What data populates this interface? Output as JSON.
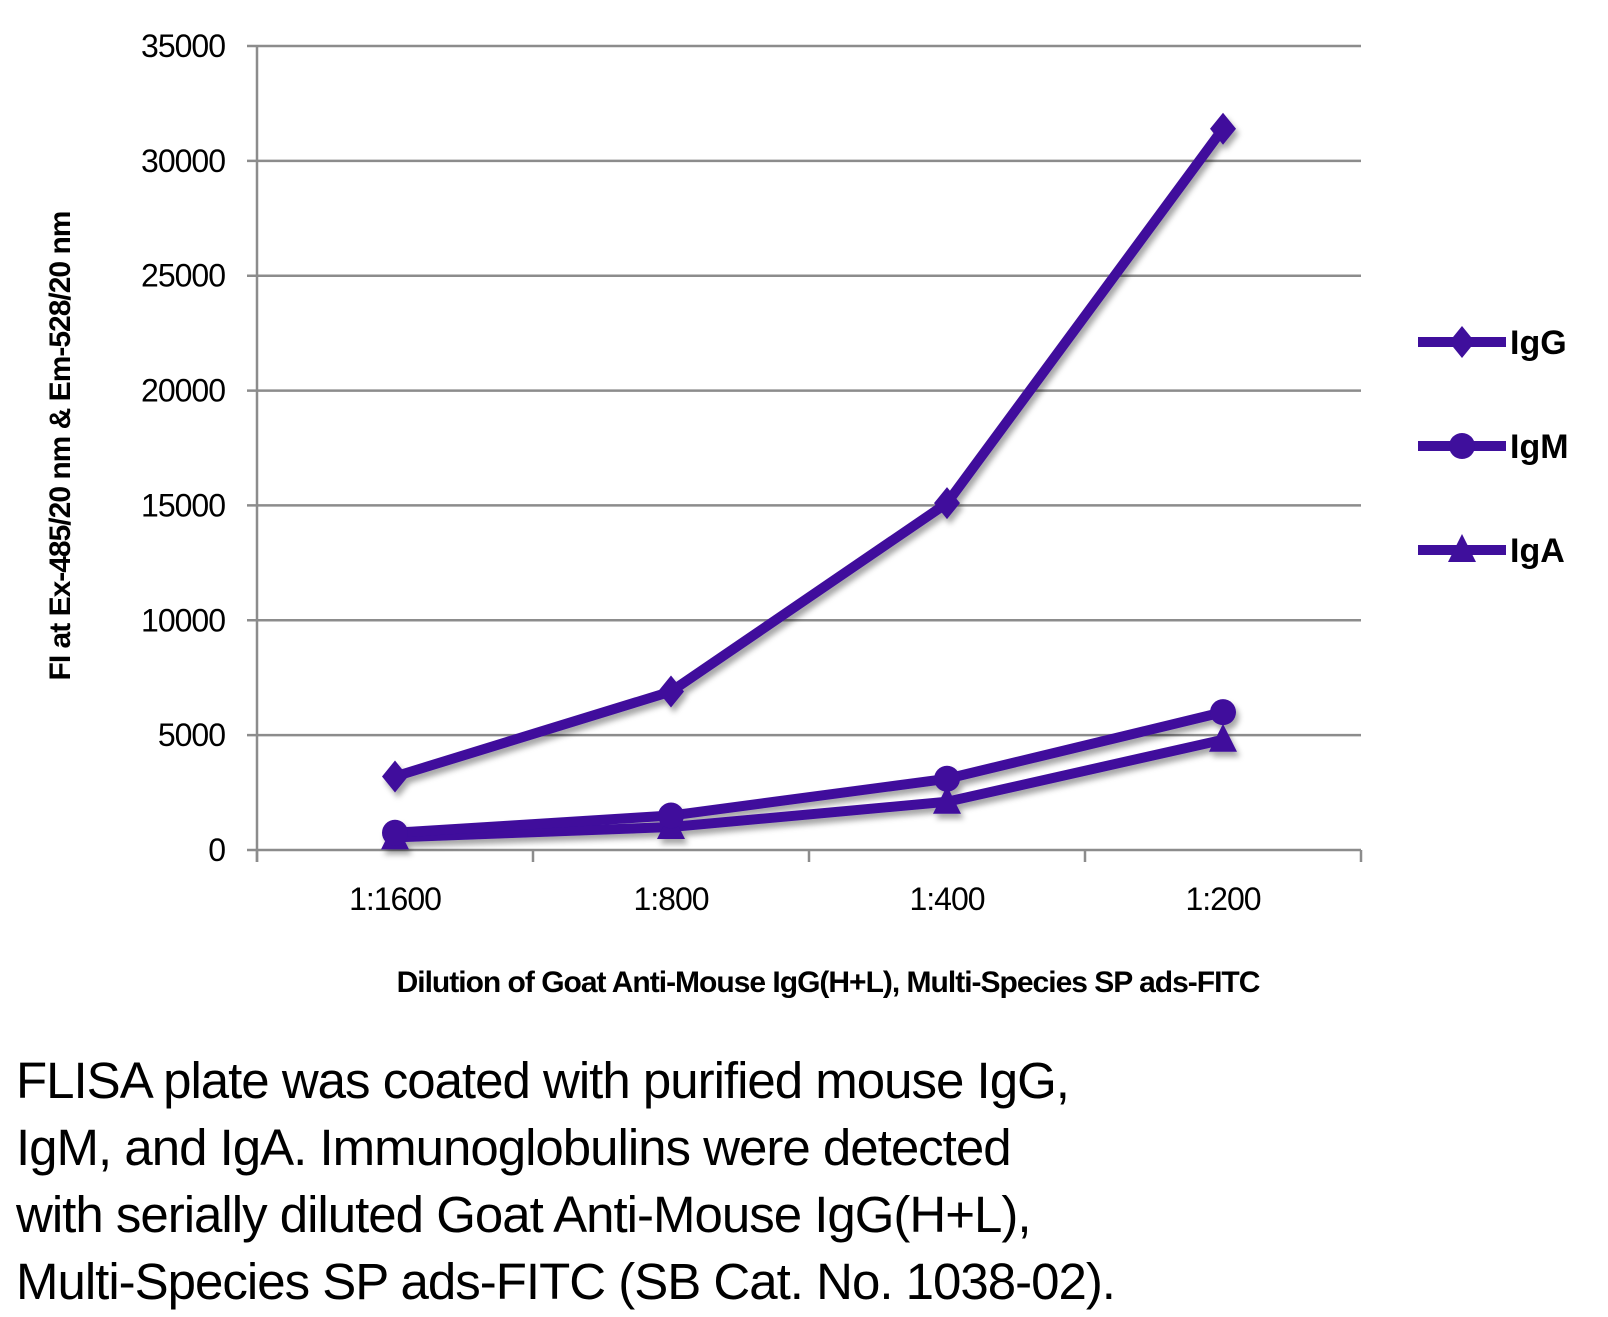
{
  "chart_data": {
    "type": "line",
    "title": "",
    "xlabel": "Dilution of Goat Anti-Mouse IgG(H+L), Multi-Species SP ads-FITC",
    "ylabel": "FI at Ex-485/20 nm & Em-528/20 nm",
    "categories": [
      "1:1600",
      "1:800",
      "1:400",
      "1:200"
    ],
    "ylim": [
      0,
      35000
    ],
    "yticks": [
      0,
      5000,
      10000,
      15000,
      20000,
      25000,
      30000,
      35000
    ],
    "grid": true,
    "legend_position": "right",
    "series": [
      {
        "name": "IgG",
        "marker": "diamond",
        "values": [
          3200,
          6900,
          15100,
          31400
        ]
      },
      {
        "name": "IgM",
        "marker": "circle",
        "values": [
          750,
          1500,
          3100,
          6000
        ]
      },
      {
        "name": "IgA",
        "marker": "triangle",
        "values": [
          550,
          1000,
          2100,
          4800
        ]
      }
    ],
    "line_color": "#3f0f9c"
  },
  "caption": [
    "FLISA plate was coated with purified mouse IgG,",
    "IgM, and IgA.  Immunoglobulins were detected",
    "with serially diluted Goat Anti-Mouse IgG(H+L),",
    "Multi-Species SP ads-FITC (SB Cat. No. 1038-02)."
  ]
}
